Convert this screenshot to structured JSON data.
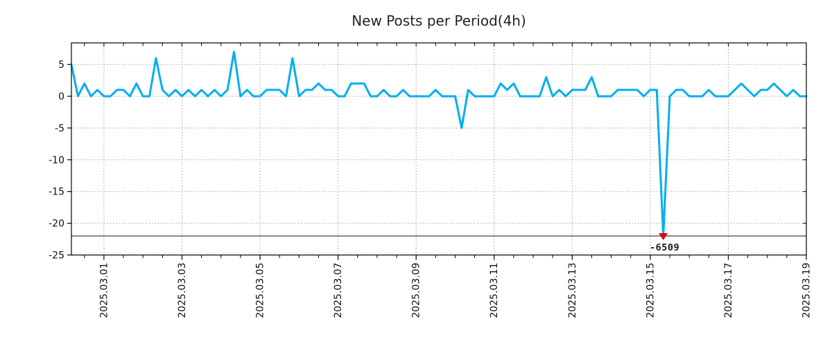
{
  "title": "New Posts per Period(4h)",
  "chart_data": {
    "type": "line",
    "title": "New Posts per Period(4h)",
    "xlabel": "",
    "ylabel": "",
    "line_color": "#00AEEF",
    "line_width": 3,
    "grid": true,
    "grid_style": "dotted",
    "grid_color": "#999999",
    "period_start": "2025.02.28 04:00",
    "interval_hours": 4,
    "values": [
      5,
      0,
      2,
      0,
      1,
      0,
      0,
      1,
      1,
      0,
      2,
      0,
      0,
      6,
      1,
      0,
      1,
      0,
      1,
      0,
      1,
      0,
      1,
      0,
      1,
      7,
      0,
      1,
      0,
      0,
      1,
      1,
      1,
      0,
      6,
      0,
      1,
      1,
      2,
      1,
      1,
      0,
      0,
      2,
      2,
      2,
      0,
      0,
      1,
      0,
      0,
      1,
      0,
      0,
      0,
      0,
      1,
      0,
      0,
      0,
      -5,
      1,
      0,
      0,
      0,
      0,
      2,
      1,
      2,
      0,
      0,
      0,
      0,
      3,
      0,
      1,
      0,
      1,
      1,
      1,
      3,
      0,
      0,
      0,
      1,
      1,
      1,
      1,
      0,
      1,
      1,
      -6509,
      0,
      1,
      1,
      0,
      0,
      0,
      1,
      0,
      0,
      0,
      1,
      2,
      1,
      0,
      1,
      1,
      2,
      1,
      0,
      1,
      0,
      0
    ],
    "clip_floor_value": -22,
    "x_tick_labels": [
      "2025.03.01",
      "2025.03.03",
      "2025.03.05",
      "2025.03.07",
      "2025.03.09",
      "2025.03.11",
      "2025.03.13",
      "2025.03.15",
      "2025.03.17",
      "2025.03.19"
    ],
    "x_tick_indices": [
      5,
      17,
      29,
      41,
      53,
      65,
      77,
      89,
      101,
      113
    ],
    "x_minor_tick_every_indices": 3,
    "y_ticks": [
      5,
      0,
      -5,
      -10,
      -15,
      -20,
      -25
    ],
    "ylim": [
      -25,
      8.4
    ],
    "threshold_line_value": -22,
    "threshold_line_color": "#111111",
    "min_annotation": {
      "text": "-6509",
      "value": -6509,
      "index": 91,
      "timestamp": "2025.03.15 08:00",
      "text_color": "#00AEEF",
      "marker": "triangle-down",
      "marker_color": "#E00000"
    }
  }
}
